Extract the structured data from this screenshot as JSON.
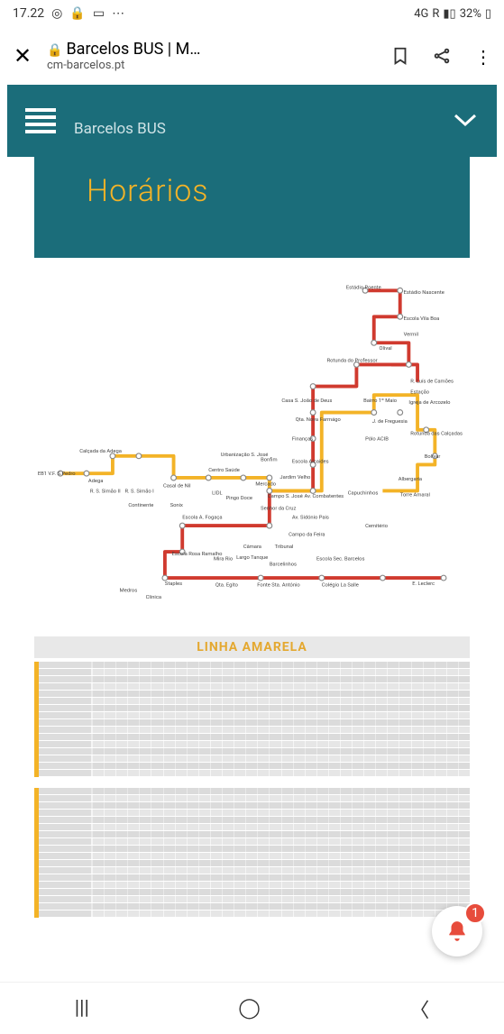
{
  "status": {
    "time": "17.22",
    "network": "4G",
    "signal": "R",
    "battery": "32%"
  },
  "browser": {
    "title": "Barcelos BUS | M…",
    "url": "cm-barcelos.pt"
  },
  "site": {
    "name": "Barcelos BUS",
    "section_title": "Horários"
  },
  "route_map": {
    "line_colors": {
      "red": "#d03a2f",
      "yellow": "#f3b327"
    },
    "stops": [
      "Estádio Nascente",
      "Estádio Poente",
      "Escola Vila Boa",
      "Vermil (Qta. da Cal)",
      "Olival",
      "Rotunda do Professor",
      "R. Luís de Camões",
      "Estação",
      "Casa S. João de Deus",
      "Qta. Nova",
      "Farmágo",
      "Bairro 1º Maio",
      "Igreja de Arcozelo",
      "J. de Freguesia de Arcozelo",
      "Rotunda das Calçadas",
      "Pólo ACIB",
      "Bolívar",
      "Finanças",
      "Escola Alcaides de Faria",
      "Urbanização S. José",
      "Bonfim",
      "Jardim Velho",
      "Albergaria",
      "Centro de Saúde / IPCA II",
      "LIDL",
      "Pingo Doce IPCA I",
      "Mercado",
      "Campo S. José",
      "Av. dos Combatentes",
      "Capuchinhos",
      "Torre Amaral",
      "Calçada da Adega",
      "EB1 V. F. S. Pedro",
      "Adega",
      "R. de S. Simão II (Igreja)",
      "R. de S. Simão I (Madura)",
      "Casal de Nil",
      "Continente",
      "Sonix",
      "Escola António Fogaça",
      "Senhor da Cruz",
      "Av. Dr. Sidónio Pais",
      "Cemitério",
      "Campo da Feira",
      "Câmara",
      "Tribunal",
      "Escola Rosa Ramalho",
      "Mira Rio",
      "Largo do Tanque (TOP)",
      "Barcelinhos (Centro)",
      "Escola Secundária de Barcelos",
      "Staples",
      "Qta. do Egito",
      "Fonte Sta. António",
      "Colégio La Salle",
      "E. Leclerc",
      "Medros",
      "Clínica"
    ]
  },
  "timetable": {
    "title": "LINHA AMARELA",
    "accent_color": "#f3b327",
    "row_count_top": 16,
    "row_count_bottom": 18,
    "col_count": 32
  },
  "notification": {
    "count": "1"
  },
  "colors": {
    "teal": "#1b6d7a",
    "gold": "#f3b327",
    "red_line": "#d03a2f"
  }
}
